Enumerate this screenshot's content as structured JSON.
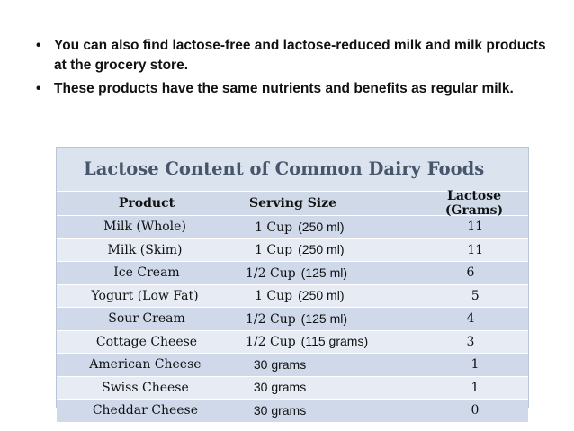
{
  "bullets": [
    "You can also find lactose-free and lactose-reduced milk and milk products at the grocery store.",
    "These products have the same nutrients and benefits as regular milk."
  ],
  "bullet_symbol": "•",
  "table": {
    "title": "Lactose Content of Common Dairy Foods",
    "headers": [
      "Product",
      "Serving Size",
      "Lactose (Grams)"
    ],
    "rows": [
      {
        "product": "Milk (Whole)",
        "serving": "1 Cup",
        "metric": "(250 ml)",
        "lactose": "11"
      },
      {
        "product": "Milk (Skim)",
        "serving": "1 Cup",
        "metric": "(250 ml)",
        "lactose": "11"
      },
      {
        "product": "Ice Cream",
        "serving": "1/2 Cup",
        "metric": "(125 ml)",
        "lactose": "6"
      },
      {
        "product": "Yogurt (Low Fat)",
        "serving": "1 Cup",
        "metric": "(250 ml)",
        "lactose": "5"
      },
      {
        "product": "Sour Cream",
        "serving": "1/2 Cup",
        "metric": "(125 ml)",
        "lactose": "4"
      },
      {
        "product": "Cottage Cheese",
        "serving": "1/2 Cup",
        "metric": "(115 grams)",
        "lactose": "3"
      },
      {
        "product": "American Cheese",
        "serving": "30 grams",
        "metric": "",
        "lactose": "1"
      },
      {
        "product": "Swiss Cheese",
        "serving": "30 grams",
        "metric": "",
        "lactose": "1"
      },
      {
        "product": "Cheddar Cheese",
        "serving": "30 grams",
        "metric": "",
        "lactose": "0"
      }
    ]
  }
}
